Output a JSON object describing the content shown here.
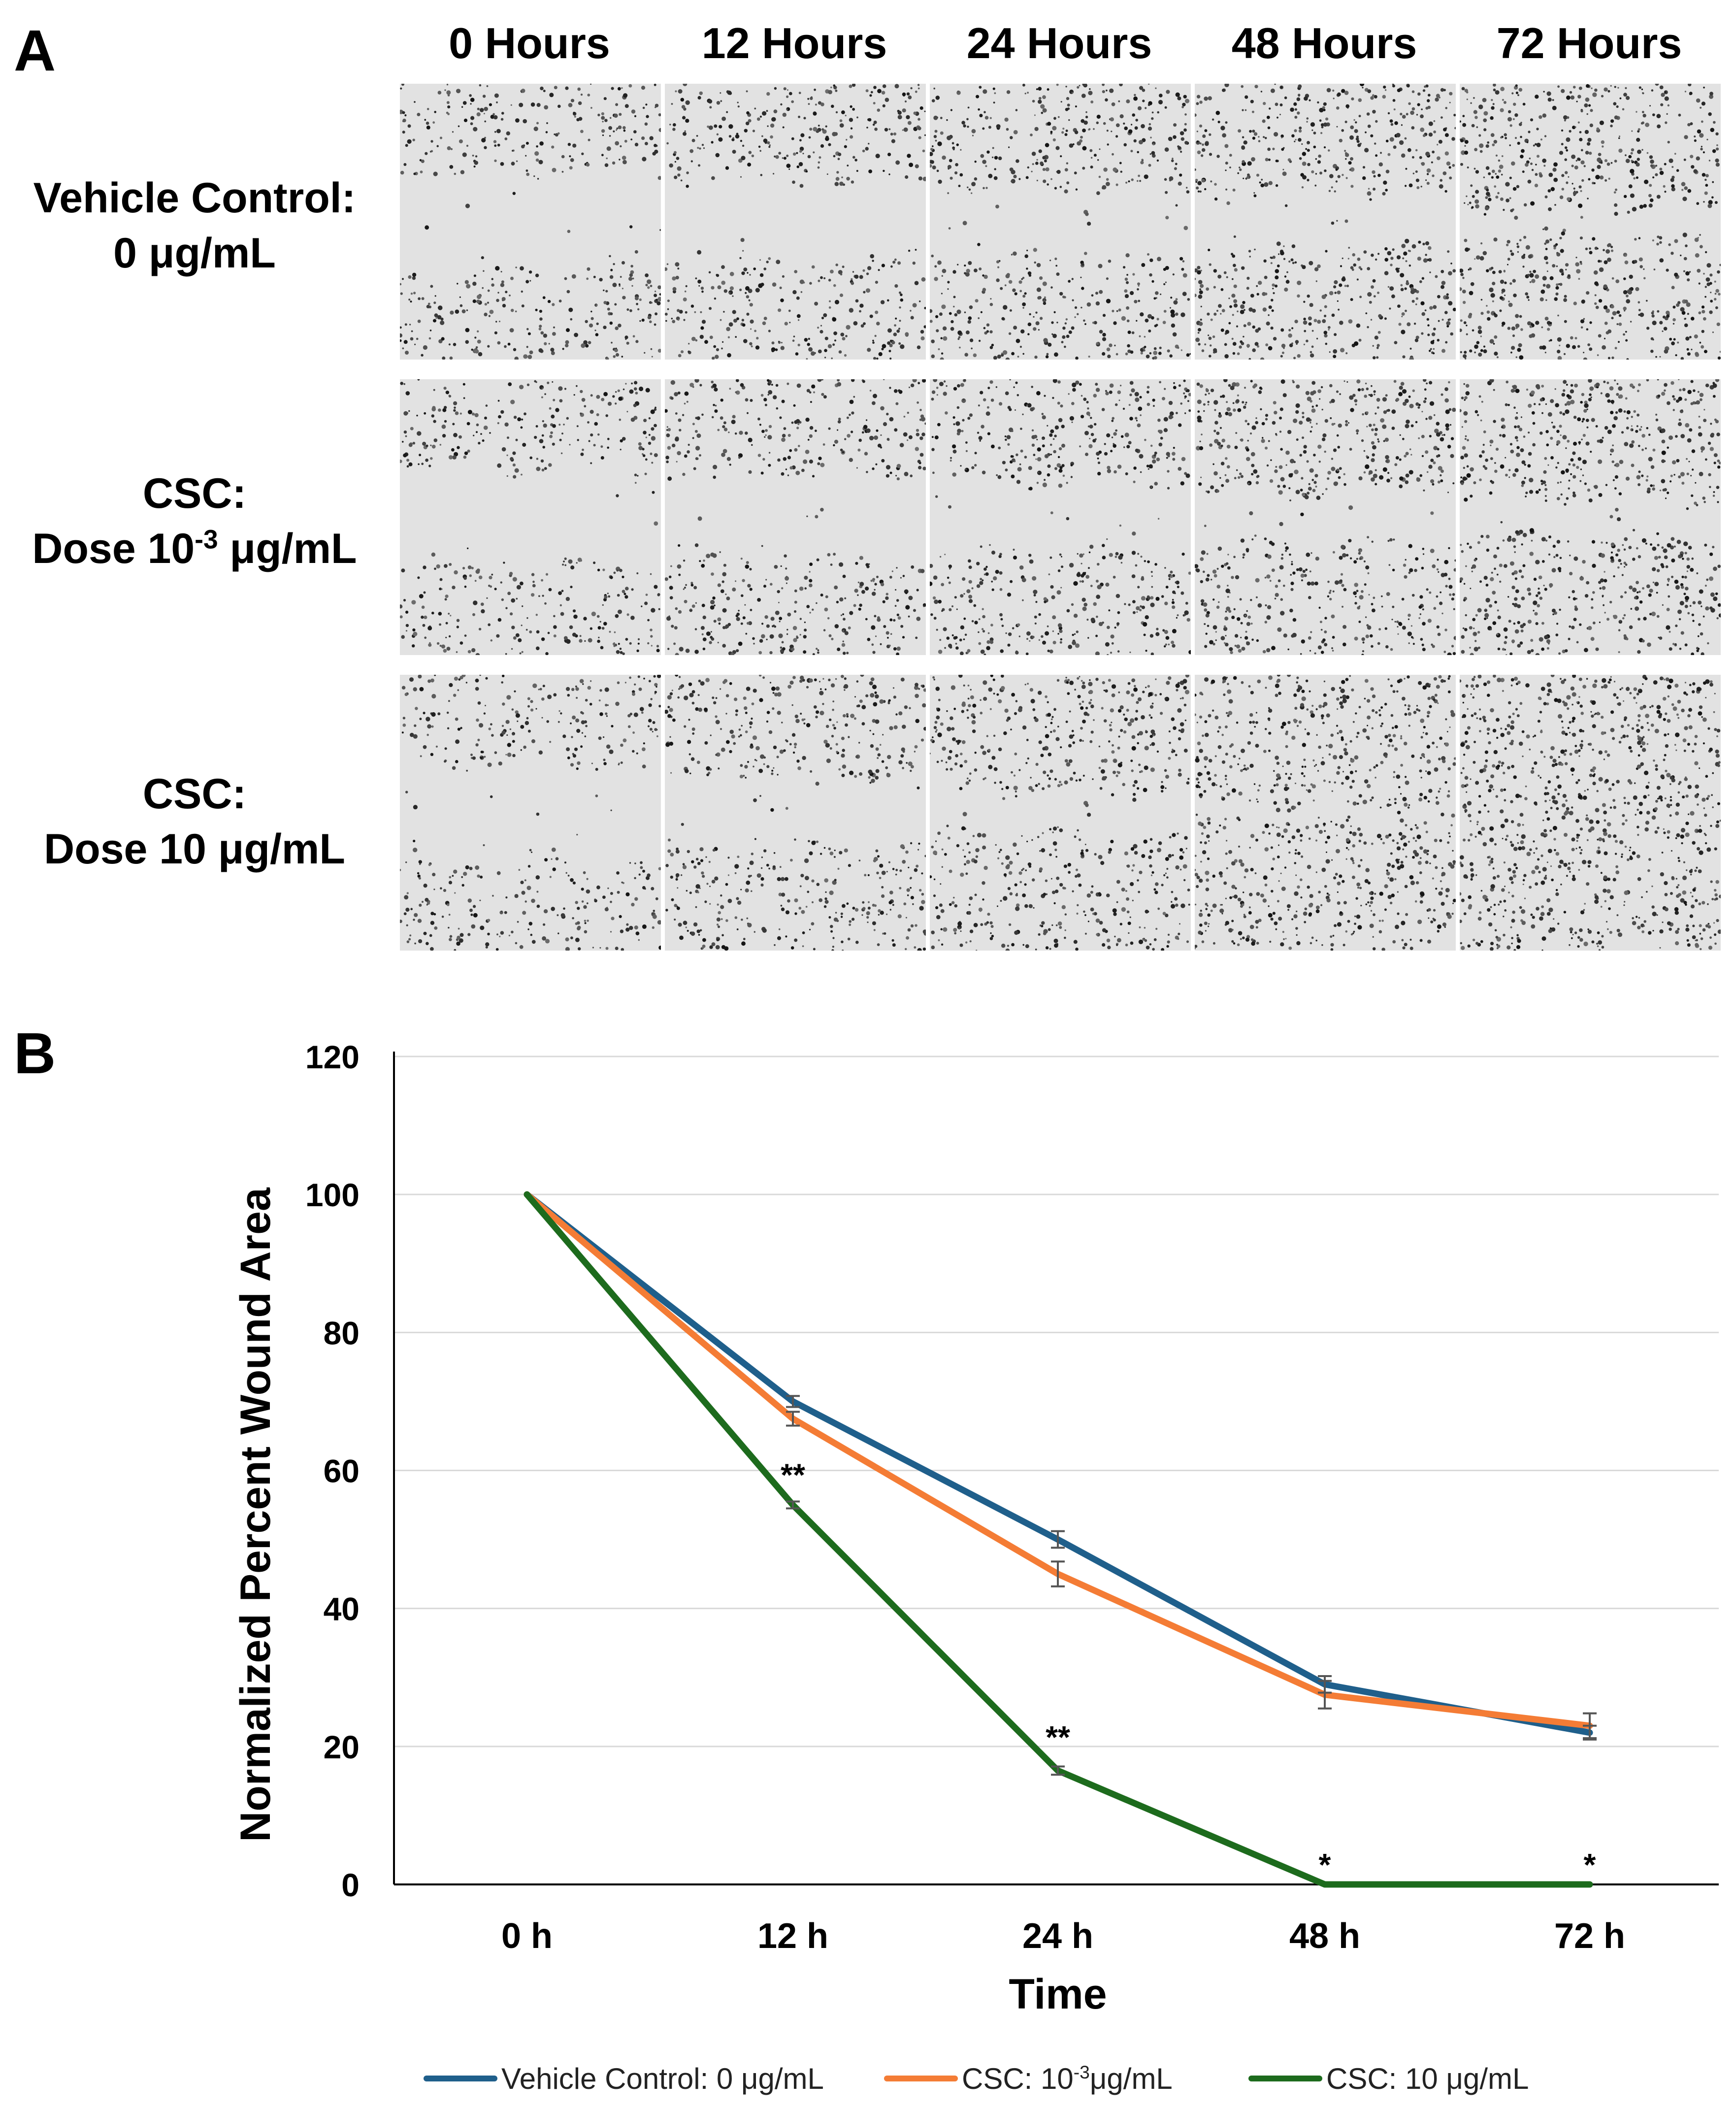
{
  "panel_a": {
    "letter": "A",
    "columns": [
      "0 Hours",
      "12 Hours",
      "24 Hours",
      "48 Hours",
      "72 Hours"
    ],
    "rows": [
      {
        "line1": "Vehicle Control:",
        "line2_pre": "0 μg/mL",
        "line2_sup": "",
        "line2_post": ""
      },
      {
        "line1": "CSC:",
        "line2_pre": "Dose 10",
        "line2_sup": "-3",
        "line2_post": " μg/mL"
      },
      {
        "line1": "CSC:",
        "line2_pre": "Dose 10 μg/mL",
        "line2_sup": "",
        "line2_post": ""
      }
    ]
  },
  "panel_b": {
    "letter": "B"
  },
  "chart_data": {
    "type": "line",
    "categories": [
      "0 h",
      "12 h",
      "24 h",
      "48 h",
      "72 h"
    ],
    "xlabel": "Time",
    "ylabel": "Normalized Percent Wound Area",
    "ylim": [
      0,
      120
    ],
    "yticks": [
      0,
      20,
      40,
      60,
      80,
      100,
      120
    ],
    "grid": true,
    "legend_position": "bottom",
    "series": [
      {
        "name": "Vehicle Control: 0 μg/mL",
        "name_pre": "Vehicle Control: 0 μg/mL",
        "name_sup": "",
        "name_post": "",
        "color": "#1f5f8b",
        "values": [
          100,
          70,
          50,
          29,
          22
        ],
        "errors": [
          0,
          0.8,
          1.2,
          1.2,
          1.0
        ]
      },
      {
        "name": "CSC: 10-3 μg/mL",
        "name_pre": "CSC: 10",
        "name_sup": "-3",
        "name_post": "μg/mL",
        "color": "#f47c35",
        "values": [
          100,
          67.5,
          45,
          27.5,
          23
        ],
        "errors": [
          0,
          1.0,
          1.8,
          2.0,
          1.8
        ]
      },
      {
        "name": "CSC: 10 μg/mL",
        "name_pre": "CSC: 10 μg/mL",
        "name_sup": "",
        "name_post": "",
        "color": "#1d6b1d",
        "values": [
          100,
          55,
          16.5,
          0,
          0
        ],
        "errors": [
          0,
          0.5,
          0.6,
          0,
          0
        ]
      }
    ],
    "annotations": [
      {
        "category": "12 h",
        "text": "**",
        "value": 59.5
      },
      {
        "category": "24 h",
        "text": "**",
        "value": 21.5
      },
      {
        "category": "48 h",
        "text": "*",
        "value": 3.0
      },
      {
        "category": "72 h",
        "text": "*",
        "value": 3.0
      }
    ]
  }
}
